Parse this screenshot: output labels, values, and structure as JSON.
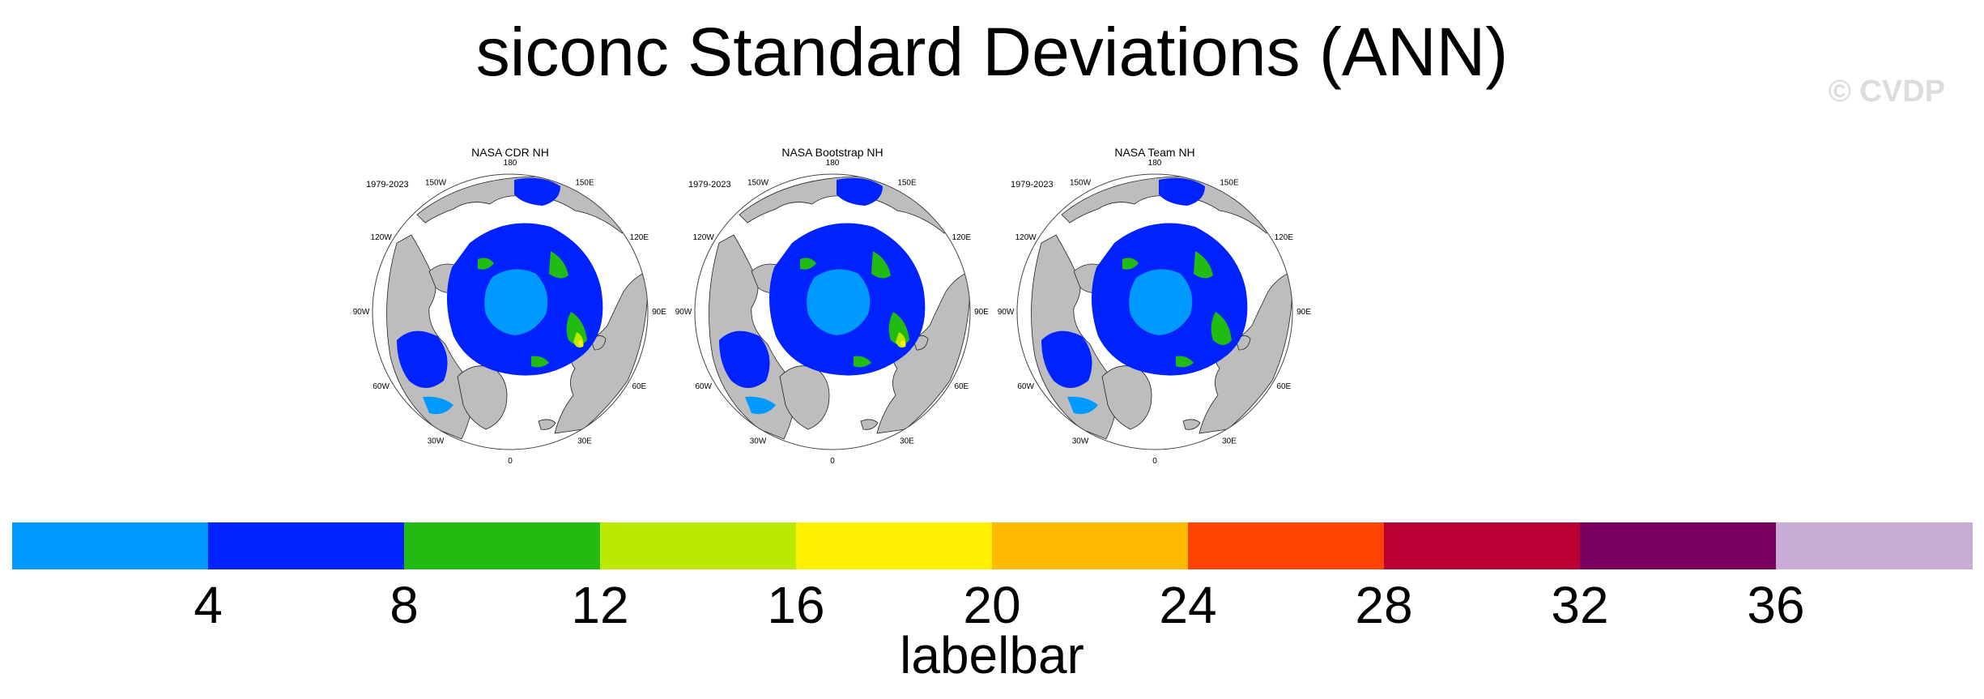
{
  "title": "siconc Standard Deviations (ANN)",
  "watermark": "© CVDP",
  "panels": [
    {
      "title": "NASA CDR NH",
      "period": "1979-2023"
    },
    {
      "title": "NASA Bootstrap NH",
      "period": "1979-2023"
    },
    {
      "title": "NASA Team NH",
      "period": "1979-2023"
    }
  ],
  "longitude_labels": [
    "180",
    "150E",
    "120E",
    "90E",
    "60E",
    "30E",
    "0",
    "30W",
    "60W",
    "90W",
    "120W",
    "150W"
  ],
  "colors": {
    "land": "#bdbdbd",
    "ocean": "#ffffff"
  },
  "labelbar": {
    "title": "labelbar",
    "colors": [
      "#0099ff",
      "#0022ff",
      "#22bb11",
      "#bbea00",
      "#fff000",
      "#ffbb00",
      "#ff4400",
      "#bb0033",
      "#7a0060",
      "#c8acd6"
    ],
    "ticks": [
      "4",
      "8",
      "12",
      "16",
      "20",
      "24",
      "28",
      "32",
      "36"
    ]
  }
}
